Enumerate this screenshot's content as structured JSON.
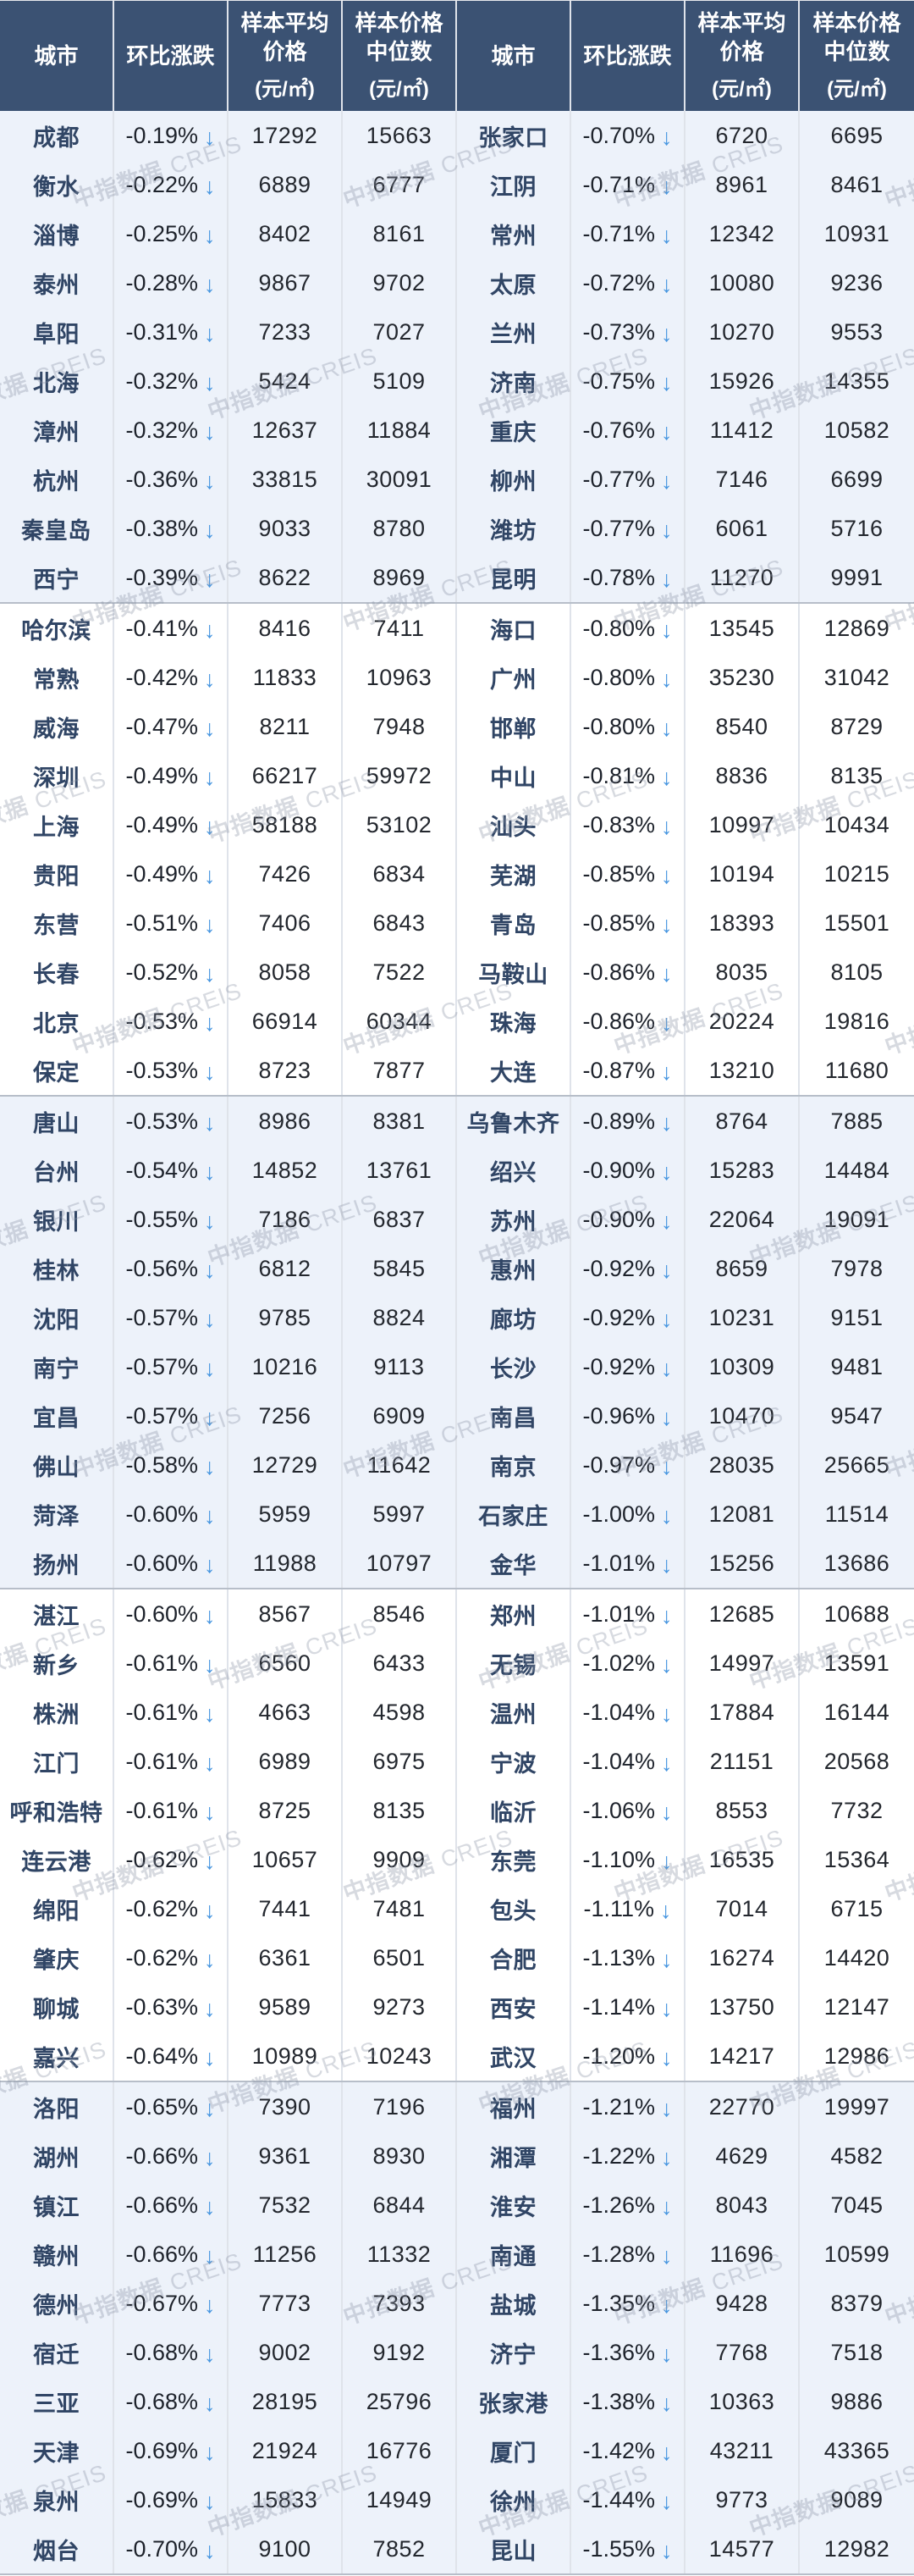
{
  "header": {
    "city": "城市",
    "change": "环比涨跌",
    "avg1": "样本平均",
    "avg2": "价格",
    "med1": "样本价格",
    "med2": "中位数",
    "unit": "(元/㎡)"
  },
  "watermark": {
    "zh": "中指数据",
    "en": "CREIS"
  },
  "colors": {
    "header_bg": "#3b5273",
    "header_text": "#ffffff",
    "tint_row_bg": "#edf2fa",
    "white_row_bg": "#ffffff",
    "city_text": "#304565",
    "value_text": "#23272e",
    "change_text": "#1d222b",
    "arrow_blue": "#4796e0",
    "column_border": "#dfe3ea",
    "group_border": "#b7bec9",
    "watermark_gray": "#8a94a4"
  },
  "table": {
    "down_arrow": "↓",
    "left": [
      {
        "city": "成都",
        "change": "-0.19%",
        "avg": "17292",
        "median": "15663"
      },
      {
        "city": "衡水",
        "change": "-0.22%",
        "avg": "6889",
        "median": "6777"
      },
      {
        "city": "淄博",
        "change": "-0.25%",
        "avg": "8402",
        "median": "8161"
      },
      {
        "city": "泰州",
        "change": "-0.28%",
        "avg": "9867",
        "median": "9702"
      },
      {
        "city": "阜阳",
        "change": "-0.31%",
        "avg": "7233",
        "median": "7027"
      },
      {
        "city": "北海",
        "change": "-0.32%",
        "avg": "5424",
        "median": "5109"
      },
      {
        "city": "漳州",
        "change": "-0.32%",
        "avg": "12637",
        "median": "11884"
      },
      {
        "city": "杭州",
        "change": "-0.36%",
        "avg": "33815",
        "median": "30091"
      },
      {
        "city": "秦皇岛",
        "change": "-0.38%",
        "avg": "9033",
        "median": "8780"
      },
      {
        "city": "西宁",
        "change": "-0.39%",
        "avg": "8622",
        "median": "8969"
      },
      {
        "city": "哈尔滨",
        "change": "-0.41%",
        "avg": "8416",
        "median": "7411"
      },
      {
        "city": "常熟",
        "change": "-0.42%",
        "avg": "11833",
        "median": "10963"
      },
      {
        "city": "威海",
        "change": "-0.47%",
        "avg": "8211",
        "median": "7948"
      },
      {
        "city": "深圳",
        "change": "-0.49%",
        "avg": "66217",
        "median": "59972"
      },
      {
        "city": "上海",
        "change": "-0.49%",
        "avg": "58188",
        "median": "53102"
      },
      {
        "city": "贵阳",
        "change": "-0.49%",
        "avg": "7426",
        "median": "6834"
      },
      {
        "city": "东营",
        "change": "-0.51%",
        "avg": "7406",
        "median": "6843"
      },
      {
        "city": "长春",
        "change": "-0.52%",
        "avg": "8058",
        "median": "7522"
      },
      {
        "city": "北京",
        "change": "-0.53%",
        "avg": "66914",
        "median": "60344"
      },
      {
        "city": "保定",
        "change": "-0.53%",
        "avg": "8723",
        "median": "7877"
      },
      {
        "city": "唐山",
        "change": "-0.53%",
        "avg": "8986",
        "median": "8381"
      },
      {
        "city": "台州",
        "change": "-0.54%",
        "avg": "14852",
        "median": "13761"
      },
      {
        "city": "银川",
        "change": "-0.55%",
        "avg": "7186",
        "median": "6837"
      },
      {
        "city": "桂林",
        "change": "-0.56%",
        "avg": "6812",
        "median": "5845"
      },
      {
        "city": "沈阳",
        "change": "-0.57%",
        "avg": "9785",
        "median": "8824"
      },
      {
        "city": "南宁",
        "change": "-0.57%",
        "avg": "10216",
        "median": "9113"
      },
      {
        "city": "宜昌",
        "change": "-0.57%",
        "avg": "7256",
        "median": "6909"
      },
      {
        "city": "佛山",
        "change": "-0.58%",
        "avg": "12729",
        "median": "11642"
      },
      {
        "city": "菏泽",
        "change": "-0.60%",
        "avg": "5959",
        "median": "5997"
      },
      {
        "city": "扬州",
        "change": "-0.60%",
        "avg": "11988",
        "median": "10797"
      },
      {
        "city": "湛江",
        "change": "-0.60%",
        "avg": "8567",
        "median": "8546"
      },
      {
        "city": "新乡",
        "change": "-0.61%",
        "avg": "6560",
        "median": "6433"
      },
      {
        "city": "株洲",
        "change": "-0.61%",
        "avg": "4663",
        "median": "4598"
      },
      {
        "city": "江门",
        "change": "-0.61%",
        "avg": "6989",
        "median": "6975"
      },
      {
        "city": "呼和浩特",
        "change": "-0.61%",
        "avg": "8725",
        "median": "8135"
      },
      {
        "city": "连云港",
        "change": "-0.62%",
        "avg": "10657",
        "median": "9909"
      },
      {
        "city": "绵阳",
        "change": "-0.62%",
        "avg": "7441",
        "median": "7481"
      },
      {
        "city": "肇庆",
        "change": "-0.62%",
        "avg": "6361",
        "median": "6501"
      },
      {
        "city": "聊城",
        "change": "-0.63%",
        "avg": "9589",
        "median": "9273"
      },
      {
        "city": "嘉兴",
        "change": "-0.64%",
        "avg": "10989",
        "median": "10243"
      },
      {
        "city": "洛阳",
        "change": "-0.65%",
        "avg": "7390",
        "median": "7196"
      },
      {
        "city": "湖州",
        "change": "-0.66%",
        "avg": "9361",
        "median": "8930"
      },
      {
        "city": "镇江",
        "change": "-0.66%",
        "avg": "7532",
        "median": "6844"
      },
      {
        "city": "赣州",
        "change": "-0.66%",
        "avg": "11256",
        "median": "11332"
      },
      {
        "city": "德州",
        "change": "-0.67%",
        "avg": "7773",
        "median": "7393"
      },
      {
        "city": "宿迁",
        "change": "-0.68%",
        "avg": "9002",
        "median": "9192"
      },
      {
        "city": "三亚",
        "change": "-0.68%",
        "avg": "28195",
        "median": "25796"
      },
      {
        "city": "天津",
        "change": "-0.69%",
        "avg": "21924",
        "median": "16776"
      },
      {
        "city": "泉州",
        "change": "-0.69%",
        "avg": "15833",
        "median": "14949"
      },
      {
        "city": "烟台",
        "change": "-0.70%",
        "avg": "9100",
        "median": "7852"
      }
    ],
    "right": [
      {
        "city": "张家口",
        "change": "-0.70%",
        "avg": "6720",
        "median": "6695"
      },
      {
        "city": "江阴",
        "change": "-0.71%",
        "avg": "8961",
        "median": "8461"
      },
      {
        "city": "常州",
        "change": "-0.71%",
        "avg": "12342",
        "median": "10931"
      },
      {
        "city": "太原",
        "change": "-0.72%",
        "avg": "10080",
        "median": "9236"
      },
      {
        "city": "兰州",
        "change": "-0.73%",
        "avg": "10270",
        "median": "9553"
      },
      {
        "city": "济南",
        "change": "-0.75%",
        "avg": "15926",
        "median": "14355"
      },
      {
        "city": "重庆",
        "change": "-0.76%",
        "avg": "11412",
        "median": "10582"
      },
      {
        "city": "柳州",
        "change": "-0.77%",
        "avg": "7146",
        "median": "6699"
      },
      {
        "city": "潍坊",
        "change": "-0.77%",
        "avg": "6061",
        "median": "5716"
      },
      {
        "city": "昆明",
        "change": "-0.78%",
        "avg": "11270",
        "median": "9991"
      },
      {
        "city": "海口",
        "change": "-0.80%",
        "avg": "13545",
        "median": "12869"
      },
      {
        "city": "广州",
        "change": "-0.80%",
        "avg": "35230",
        "median": "31042"
      },
      {
        "city": "邯郸",
        "change": "-0.80%",
        "avg": "8540",
        "median": "8729"
      },
      {
        "city": "中山",
        "change": "-0.81%",
        "avg": "8836",
        "median": "8135"
      },
      {
        "city": "汕头",
        "change": "-0.83%",
        "avg": "10997",
        "median": "10434"
      },
      {
        "city": "芜湖",
        "change": "-0.85%",
        "avg": "10194",
        "median": "10215"
      },
      {
        "city": "青岛",
        "change": "-0.85%",
        "avg": "18393",
        "median": "15501"
      },
      {
        "city": "马鞍山",
        "change": "-0.86%",
        "avg": "8035",
        "median": "8105"
      },
      {
        "city": "珠海",
        "change": "-0.86%",
        "avg": "20224",
        "median": "19816"
      },
      {
        "city": "大连",
        "change": "-0.87%",
        "avg": "13210",
        "median": "11680"
      },
      {
        "city": "乌鲁木齐",
        "change": "-0.89%",
        "avg": "8764",
        "median": "7885"
      },
      {
        "city": "绍兴",
        "change": "-0.90%",
        "avg": "15283",
        "median": "14484"
      },
      {
        "city": "苏州",
        "change": "-0.90%",
        "avg": "22064",
        "median": "19091"
      },
      {
        "city": "惠州",
        "change": "-0.92%",
        "avg": "8659",
        "median": "7978"
      },
      {
        "city": "廊坊",
        "change": "-0.92%",
        "avg": "10231",
        "median": "9151"
      },
      {
        "city": "长沙",
        "change": "-0.92%",
        "avg": "10309",
        "median": "9481"
      },
      {
        "city": "南昌",
        "change": "-0.96%",
        "avg": "10470",
        "median": "9547"
      },
      {
        "city": "南京",
        "change": "-0.97%",
        "avg": "28035",
        "median": "25665"
      },
      {
        "city": "石家庄",
        "change": "-1.00%",
        "avg": "12081",
        "median": "11514"
      },
      {
        "city": "金华",
        "change": "-1.01%",
        "avg": "15256",
        "median": "13686"
      },
      {
        "city": "郑州",
        "change": "-1.01%",
        "avg": "12685",
        "median": "10688"
      },
      {
        "city": "无锡",
        "change": "-1.02%",
        "avg": "14997",
        "median": "13591"
      },
      {
        "city": "温州",
        "change": "-1.04%",
        "avg": "17884",
        "median": "16144"
      },
      {
        "city": "宁波",
        "change": "-1.04%",
        "avg": "21151",
        "median": "20568"
      },
      {
        "city": "临沂",
        "change": "-1.06%",
        "avg": "8553",
        "median": "7732"
      },
      {
        "city": "东莞",
        "change": "-1.10%",
        "avg": "16535",
        "median": "15364"
      },
      {
        "city": "包头",
        "change": "-1.11%",
        "avg": "7014",
        "median": "6715"
      },
      {
        "city": "合肥",
        "change": "-1.13%",
        "avg": "16274",
        "median": "14420"
      },
      {
        "city": "西安",
        "change": "-1.14%",
        "avg": "13750",
        "median": "12147"
      },
      {
        "city": "武汉",
        "change": "-1.20%",
        "avg": "14217",
        "median": "12986"
      },
      {
        "city": "福州",
        "change": "-1.21%",
        "avg": "22770",
        "median": "19997"
      },
      {
        "city": "湘潭",
        "change": "-1.22%",
        "avg": "4629",
        "median": "4582"
      },
      {
        "city": "淮安",
        "change": "-1.26%",
        "avg": "8043",
        "median": "7045"
      },
      {
        "city": "南通",
        "change": "-1.28%",
        "avg": "11696",
        "median": "10599"
      },
      {
        "city": "盐城",
        "change": "-1.35%",
        "avg": "9428",
        "median": "8379"
      },
      {
        "city": "济宁",
        "change": "-1.36%",
        "avg": "7768",
        "median": "7518"
      },
      {
        "city": "张家港",
        "change": "-1.38%",
        "avg": "10363",
        "median": "9886"
      },
      {
        "city": "厦门",
        "change": "-1.42%",
        "avg": "43211",
        "median": "43365"
      },
      {
        "city": "徐州",
        "change": "-1.44%",
        "avg": "9773",
        "median": "9089"
      },
      {
        "city": "昆山",
        "change": "-1.55%",
        "avg": "14577",
        "median": "12982"
      }
    ]
  }
}
